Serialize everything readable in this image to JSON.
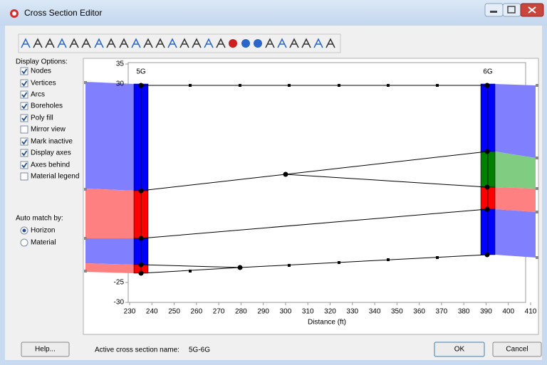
{
  "window": {
    "title": "Cross Section Editor"
  },
  "display_options": {
    "label": "Display Options:",
    "items": [
      {
        "label": "Nodes",
        "checked": true
      },
      {
        "label": "Vertices",
        "checked": true
      },
      {
        "label": "Arcs",
        "checked": true
      },
      {
        "label": "Boreholes",
        "checked": true
      },
      {
        "label": "Poly fill",
        "checked": true
      },
      {
        "label": "Mirror view",
        "checked": false
      },
      {
        "label": "Mark inactive",
        "checked": true
      },
      {
        "label": "Display axes",
        "checked": true
      },
      {
        "label": "Axes behind",
        "checked": true
      },
      {
        "label": "Material legend",
        "checked": false
      }
    ]
  },
  "auto_match": {
    "label": "Auto match by:",
    "options": [
      {
        "label": "Horizon",
        "selected": true
      },
      {
        "label": "Material",
        "selected": false
      }
    ]
  },
  "plot": {
    "x_axis_label": "Distance (ft)",
    "xticks": [
      230,
      240,
      250,
      260,
      270,
      280,
      290,
      300,
      310,
      320,
      330,
      340,
      350,
      360,
      370,
      380,
      390,
      400,
      410
    ],
    "yticks": [
      35,
      30,
      -25,
      -30
    ],
    "boreholes": [
      "5G",
      "6G"
    ]
  },
  "footer": {
    "help": "Help...",
    "active_label": "Active cross section name:",
    "active_name": "5G-6G",
    "ok": "OK",
    "cancel": "Cancel"
  }
}
